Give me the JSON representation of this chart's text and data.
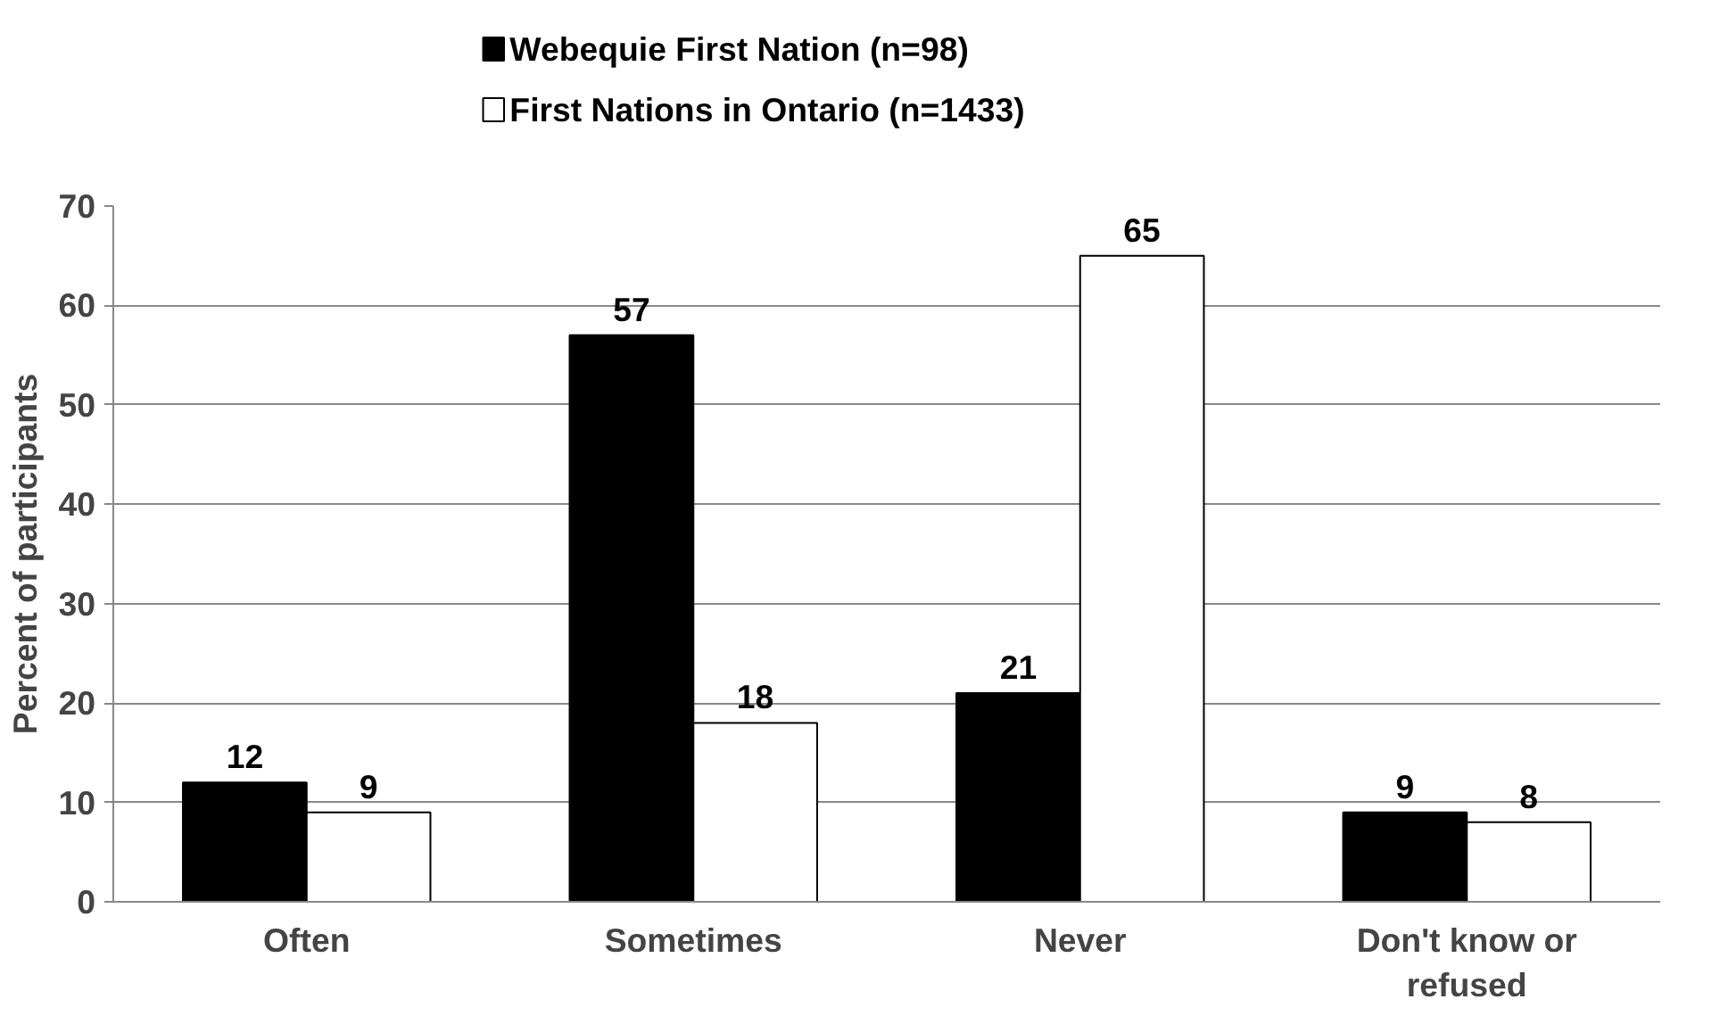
{
  "chart_data": {
    "type": "bar",
    "ylabel": "Percent of participants",
    "categories": [
      "Often",
      "Sometimes",
      "Never",
      "Don't know or refused"
    ],
    "series": [
      {
        "name": "Webequie First Nation (n=98)",
        "color": "#000000",
        "values": [
          12,
          57,
          21,
          9
        ]
      },
      {
        "name": "First Nations in Ontario (n=1433)",
        "color": "#ffffff",
        "values": [
          9,
          18,
          65,
          8
        ]
      }
    ],
    "ylim": [
      0,
      70
    ],
    "yticks": [
      0,
      10,
      20,
      30,
      40,
      50,
      60,
      70
    ],
    "grid": "y",
    "legend": "top",
    "data_labels": true
  }
}
